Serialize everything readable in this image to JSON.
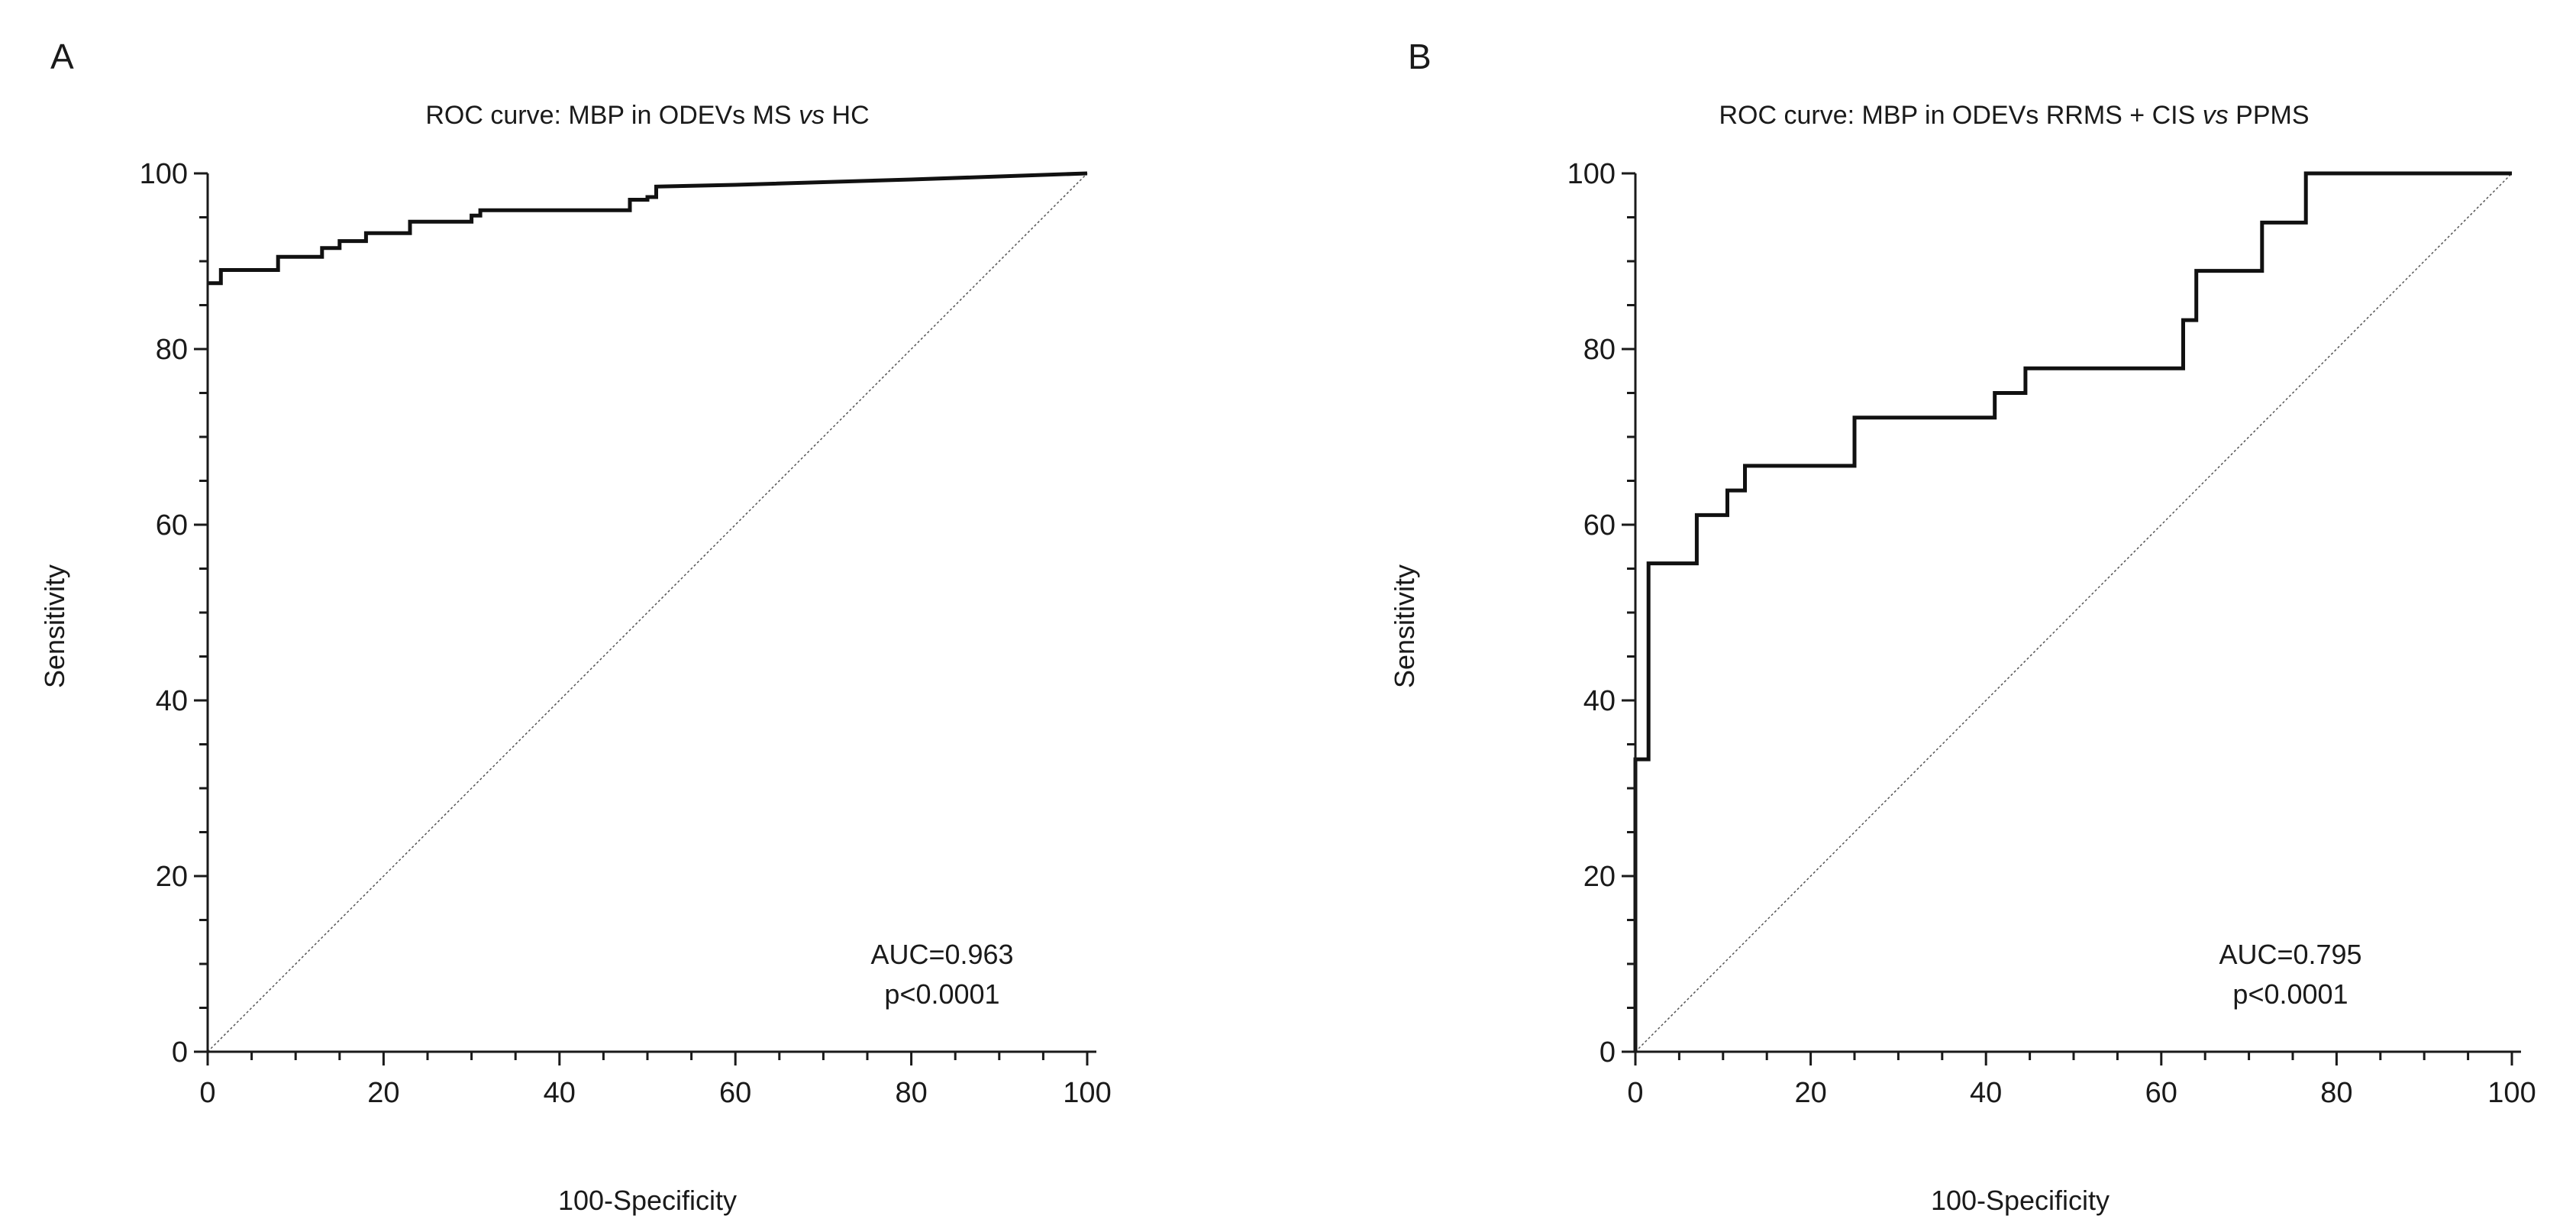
{
  "chart_data": [
    {
      "type": "line",
      "panel_label": "A",
      "title_prefix": "ROC curve: MBP in ODEVs MS ",
      "title_italic": "vs",
      "title_suffix": " HC",
      "xlabel": "100-Specificity",
      "ylabel": "Sensitivity",
      "xlim": [
        0,
        100
      ],
      "ylim": [
        0,
        100
      ],
      "xticks": [
        0,
        20,
        40,
        60,
        80,
        100
      ],
      "yticks": [
        0,
        20,
        40,
        60,
        80,
        100
      ],
      "annotation_lines": [
        "AUC=0.963",
        "p<0.0001"
      ],
      "series": [
        {
          "name": "ROC",
          "style": "step",
          "x": [
            0,
            0,
            1.5,
            1.5,
            8,
            8,
            13,
            13,
            15,
            15,
            18,
            18,
            23,
            23,
            30,
            30,
            31,
            31,
            48,
            48,
            50,
            50,
            51,
            51,
            60,
            80,
            100
          ],
          "y": [
            87.5,
            87.5,
            87.5,
            89,
            89,
            90.5,
            90.5,
            91.5,
            91.5,
            92.3,
            92.3,
            93.2,
            93.2,
            94.5,
            94.5,
            95.2,
            95.2,
            95.8,
            95.8,
            97,
            97,
            97.3,
            97.3,
            98.5,
            98.7,
            99.3,
            100
          ]
        },
        {
          "name": "Reference",
          "style": "dotted",
          "x": [
            0,
            100
          ],
          "y": [
            0,
            100
          ]
        }
      ]
    },
    {
      "type": "line",
      "panel_label": "B",
      "title_prefix": "ROC curve: MBP in ODEVs RRMS + CIS ",
      "title_italic": "vs",
      "title_suffix": "  PPMS",
      "xlabel": "100-Specificity",
      "ylabel": "Sensitivity",
      "xlim": [
        0,
        100
      ],
      "ylim": [
        0,
        100
      ],
      "xticks": [
        0,
        20,
        40,
        60,
        80,
        100
      ],
      "yticks": [
        0,
        20,
        40,
        60,
        80,
        100
      ],
      "annotation_lines": [
        "AUC=0.795",
        "p<0.0001"
      ],
      "series": [
        {
          "name": "ROC",
          "style": "step",
          "x": [
            0,
            0,
            1.5,
            1.5,
            7,
            7,
            10.5,
            10.5,
            12.5,
            12.5,
            25,
            25,
            41,
            41,
            44.5,
            44.5,
            62.5,
            62.5,
            64,
            64,
            71.5,
            71.5,
            76.5,
            76.5,
            100
          ],
          "y": [
            0,
            33.3,
            33.3,
            55.6,
            55.6,
            61.1,
            61.1,
            63.9,
            63.9,
            66.7,
            66.7,
            72.2,
            72.2,
            75,
            75,
            77.8,
            77.8,
            83.3,
            83.3,
            88.9,
            88.9,
            94.4,
            94.4,
            100,
            100
          ]
        },
        {
          "name": "Reference",
          "style": "dotted",
          "x": [
            0,
            100
          ],
          "y": [
            0,
            100
          ]
        }
      ]
    }
  ]
}
